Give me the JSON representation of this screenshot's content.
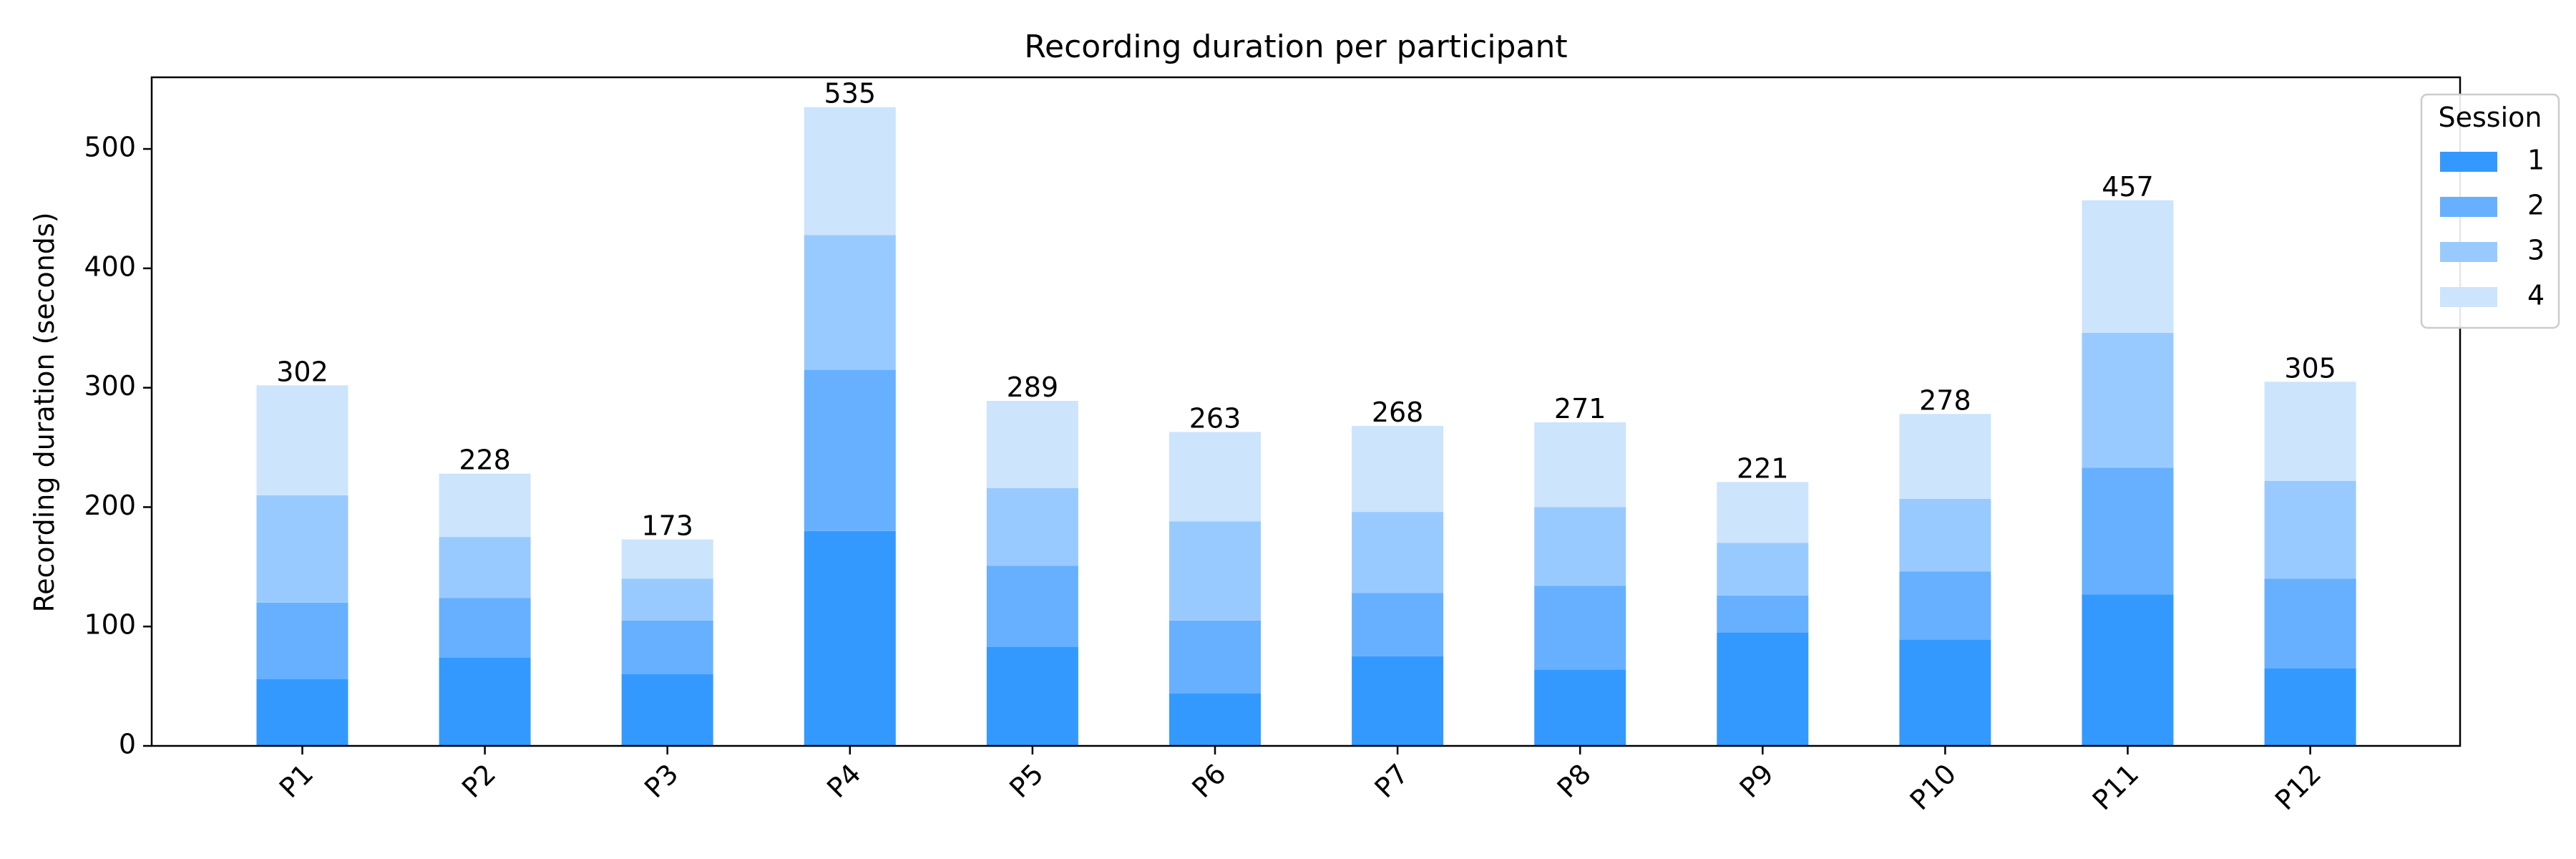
{
  "chart_data": {
    "type": "bar",
    "stacked": true,
    "title": "Recording duration per participant",
    "xlabel": "",
    "ylabel": "Recording duration (seconds)",
    "ylim": [
      0,
      560
    ],
    "yticks": [
      0,
      100,
      200,
      300,
      400,
      500
    ],
    "grid": false,
    "legend": {
      "title": "Session",
      "placement": "top-right"
    },
    "categories": [
      "P1",
      "P2",
      "P3",
      "P4",
      "P5",
      "P6",
      "P7",
      "P8",
      "P9",
      "P10",
      "P11",
      "P12"
    ],
    "series": [
      {
        "name": "1",
        "color": "#3399ff",
        "values": [
          56,
          74,
          60,
          180,
          83,
          44,
          75,
          64,
          95,
          89,
          127,
          65
        ]
      },
      {
        "name": "2",
        "color": "#66b0ff",
        "values": [
          64,
          50,
          45,
          135,
          68,
          61,
          53,
          70,
          31,
          57,
          106,
          75
        ]
      },
      {
        "name": "3",
        "color": "#99caff",
        "values": [
          90,
          51,
          35,
          113,
          65,
          83,
          68,
          66,
          44,
          61,
          113,
          82
        ]
      },
      {
        "name": "4",
        "color": "#cce4fc",
        "values": [
          92,
          53,
          33,
          107,
          73,
          75,
          72,
          71,
          51,
          71,
          111,
          83
        ]
      }
    ],
    "totals": [
      302,
      228,
      173,
      535,
      289,
      263,
      268,
      271,
      221,
      278,
      457,
      305
    ]
  }
}
